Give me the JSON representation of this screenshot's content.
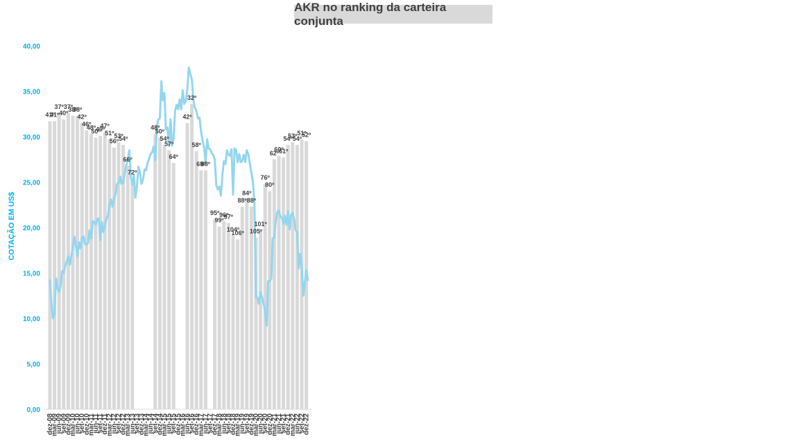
{
  "chart_data": {
    "type": "bar+line",
    "title": "AKR no ranking da carteira conjunta",
    "ylabel": "COTAÇÃO EM US$",
    "ylim": [
      0,
      40
    ],
    "yticks": [
      "0,00",
      "5,00",
      "10,00",
      "15,00",
      "20,00",
      "25,00",
      "30,00",
      "35,00",
      "40,00"
    ],
    "xticks": [
      "dez-08",
      "mar-09",
      "jun-09",
      "set-09",
      "dez-09",
      "mar-10",
      "jun-10",
      "set-10",
      "dez-10",
      "mar-11",
      "jun-11",
      "set-11",
      "dez-11",
      "mar-12",
      "jun-12",
      "set-12",
      "dez-12",
      "mar-13",
      "jun-13",
      "set-13",
      "dez-13",
      "mar-14",
      "jun-14",
      "set-14",
      "dez-14",
      "mar-15",
      "jun-15",
      "set-15",
      "dez-15",
      "mar-16",
      "jun-16",
      "set-16",
      "dez-16",
      "mar-17",
      "jun-17",
      "set-17",
      "dez-17",
      "mar-18",
      "jun-18",
      "set-18",
      "dez-18",
      "mar-19",
      "jun-19",
      "set-19",
      "dez-19",
      "mar-20",
      "jun-20",
      "set-20",
      "dez-20",
      "mar-21",
      "jun-21",
      "set-21",
      "dez-21",
      "mar-22",
      "jun-22",
      "set-22",
      "dez-22"
    ],
    "bars": [
      {
        "i": 0,
        "v": 31.7,
        "label": "41º"
      },
      {
        "i": 3,
        "v": 31.7,
        "label": "41º"
      },
      {
        "i": 6,
        "v": 32.6,
        "label": "37º"
      },
      {
        "i": 9,
        "v": 31.9,
        "label": "40º"
      },
      {
        "i": 12,
        "v": 32.6,
        "label": "37º"
      },
      {
        "i": 15,
        "v": 32.3,
        "label": "38º"
      },
      {
        "i": 18,
        "v": 32.3,
        "label": "38º"
      },
      {
        "i": 21,
        "v": 31.5,
        "label": "42º"
      },
      {
        "i": 24,
        "v": 30.7,
        "label": "46º"
      },
      {
        "i": 27,
        "v": 30.3,
        "label": "48º"
      },
      {
        "i": 30,
        "v": 29.9,
        "label": "50º"
      },
      {
        "i": 33,
        "v": 30.1,
        "label": "49º"
      },
      {
        "i": 36,
        "v": 30.5,
        "label": "47º"
      },
      {
        "i": 39,
        "v": 29.7,
        "label": "51º"
      },
      {
        "i": 42,
        "v": 28.8,
        "label": "56º"
      },
      {
        "i": 45,
        "v": 29.4,
        "label": "53º"
      },
      {
        "i": 48,
        "v": 29.1,
        "label": "54º"
      },
      {
        "i": 51,
        "v": 26.8,
        "label": "66º"
      },
      {
        "i": 54,
        "v": 25.4,
        "label": "72º"
      },
      {
        "i": 69,
        "v": 30.3,
        "label": "48º"
      },
      {
        "i": 72,
        "v": 29.9,
        "label": "50º"
      },
      {
        "i": 75,
        "v": 29.1,
        "label": "54º"
      },
      {
        "i": 78,
        "v": 28.5,
        "label": "57º"
      },
      {
        "i": 81,
        "v": 27.1,
        "label": "64º"
      },
      {
        "i": 90,
        "v": 31.5,
        "label": "42º"
      },
      {
        "i": 93,
        "v": 33.6,
        "label": "32º"
      },
      {
        "i": 96,
        "v": 28.4,
        "label": "58º"
      },
      {
        "i": 99,
        "v": 26.3,
        "label": "68º"
      },
      {
        "i": 102,
        "v": 26.3,
        "label": "68º"
      },
      {
        "i": 108,
        "v": 20.9,
        "label": "95º"
      },
      {
        "i": 111,
        "v": 20.1,
        "label": "99º"
      },
      {
        "i": 114,
        "v": 20.7,
        "label": "96º"
      },
      {
        "i": 117,
        "v": 20.5,
        "label": "97º"
      },
      {
        "i": 120,
        "v": 19.1,
        "label": "104º"
      },
      {
        "i": 123,
        "v": 18.7,
        "label": "106º"
      },
      {
        "i": 126,
        "v": 22.3,
        "label": "88º"
      },
      {
        "i": 129,
        "v": 23.1,
        "label": "84º"
      },
      {
        "i": 132,
        "v": 22.3,
        "label": "88º"
      },
      {
        "i": 135,
        "v": 18.9,
        "label": "105º"
      },
      {
        "i": 138,
        "v": 19.7,
        "label": "101º"
      },
      {
        "i": 141,
        "v": 24.8,
        "label": "76º"
      },
      {
        "i": 144,
        "v": 24.0,
        "label": "80º"
      },
      {
        "i": 147,
        "v": 27.5,
        "label": "62º"
      },
      {
        "i": 150,
        "v": 27.9,
        "label": "60º"
      },
      {
        "i": 153,
        "v": 27.7,
        "label": "61º"
      },
      {
        "i": 156,
        "v": 29.1,
        "label": "54º"
      },
      {
        "i": 159,
        "v": 29.4,
        "label": "53º"
      },
      {
        "i": 162,
        "v": 29.1,
        "label": "54º"
      },
      {
        "i": 165,
        "v": 29.7,
        "label": "51º"
      },
      {
        "i": 168,
        "v": 29.5,
        "label": "52º"
      }
    ],
    "line": [
      [
        0,
        14.2
      ],
      [
        1,
        11.5
      ],
      [
        2,
        10.0
      ],
      [
        3,
        10.5
      ],
      [
        4,
        14.4
      ],
      [
        5,
        13.3
      ],
      [
        6,
        12.9
      ],
      [
        7,
        13.6
      ],
      [
        8,
        15.2
      ],
      [
        9,
        15.0
      ],
      [
        10,
        15.8
      ],
      [
        11,
        16.2
      ],
      [
        12,
        16.8
      ],
      [
        13,
        15.9
      ],
      [
        14,
        16.8
      ],
      [
        15,
        17.9
      ],
      [
        16,
        19.0
      ],
      [
        17,
        18.0
      ],
      [
        18,
        16.8
      ],
      [
        19,
        18.4
      ],
      [
        20,
        17.7
      ],
      [
        21,
        18.9
      ],
      [
        22,
        19.0
      ],
      [
        23,
        18.2
      ],
      [
        24,
        18.1
      ],
      [
        25,
        18.3
      ],
      [
        26,
        19.7
      ],
      [
        27,
        18.8
      ],
      [
        28,
        20.7
      ],
      [
        29,
        20.6
      ],
      [
        30,
        20.3
      ],
      [
        31,
        20.9
      ],
      [
        32,
        21.0
      ],
      [
        33,
        18.6
      ],
      [
        34,
        20.6
      ],
      [
        35,
        19.5
      ],
      [
        36,
        20.1
      ],
      [
        37,
        21.0
      ],
      [
        38,
        21.3
      ],
      [
        39,
        22.6
      ],
      [
        40,
        23.1
      ],
      [
        41,
        22.3
      ],
      [
        42,
        23.2
      ],
      [
        43,
        23.7
      ],
      [
        44,
        24.8
      ],
      [
        45,
        24.9
      ],
      [
        46,
        25.6
      ],
      [
        47,
        24.8
      ],
      [
        48,
        25.0
      ],
      [
        49,
        26.0
      ],
      [
        50,
        26.8
      ],
      [
        51,
        27.5
      ],
      [
        52,
        28.5
      ],
      [
        53,
        25.6
      ],
      [
        54,
        24.7
      ],
      [
        55,
        25.8
      ],
      [
        56,
        23.3
      ],
      [
        57,
        24.5
      ],
      [
        58,
        26.7
      ],
      [
        59,
        26.0
      ],
      [
        60,
        24.8
      ],
      [
        61,
        25.3
      ],
      [
        62,
        26.4
      ],
      [
        63,
        26.3
      ],
      [
        64,
        27.1
      ],
      [
        65,
        27.6
      ],
      [
        66,
        28.1
      ],
      [
        67,
        28.3
      ],
      [
        68,
        28.9
      ],
      [
        69,
        27.4
      ],
      [
        70,
        31.0
      ],
      [
        71,
        31.9
      ],
      [
        72,
        32.0
      ],
      [
        73,
        36.1
      ],
      [
        74,
        34.0
      ],
      [
        75,
        34.8
      ],
      [
        76,
        30.8
      ],
      [
        77,
        31.0
      ],
      [
        78,
        29.0
      ],
      [
        79,
        31.9
      ],
      [
        80,
        29.0
      ],
      [
        81,
        29.8
      ],
      [
        82,
        32.8
      ],
      [
        83,
        33.5
      ],
      [
        84,
        33.0
      ],
      [
        85,
        34.1
      ],
      [
        86,
        33.0
      ],
      [
        87,
        35.1
      ],
      [
        88,
        33.6
      ],
      [
        89,
        33.9
      ],
      [
        90,
        35.2
      ],
      [
        91,
        37.6
      ],
      [
        92,
        36.9
      ],
      [
        93,
        36.3
      ],
      [
        94,
        34.0
      ],
      [
        95,
        33.2
      ],
      [
        96,
        32.8
      ],
      [
        97,
        32.0
      ],
      [
        98,
        32.1
      ],
      [
        99,
        30.6
      ],
      [
        100,
        29.6
      ],
      [
        101,
        28.8
      ],
      [
        102,
        27.2
      ],
      [
        103,
        29.7
      ],
      [
        104,
        28.7
      ],
      [
        105,
        28.6
      ],
      [
        106,
        28.2
      ],
      [
        107,
        28.0
      ],
      [
        108,
        27.5
      ],
      [
        109,
        24.6
      ],
      [
        110,
        24.2
      ],
      [
        111,
        24.5
      ],
      [
        112,
        23.5
      ],
      [
        113,
        25.8
      ],
      [
        114,
        27.3
      ],
      [
        115,
        27.0
      ],
      [
        116,
        28.5
      ],
      [
        117,
        28.0
      ],
      [
        118,
        27.9
      ],
      [
        119,
        28.6
      ],
      [
        120,
        23.6
      ],
      [
        121,
        28.7
      ],
      [
        122,
        28.5
      ],
      [
        123,
        27.2
      ],
      [
        124,
        28.1
      ],
      [
        125,
        27.2
      ],
      [
        126,
        27.3
      ],
      [
        127,
        28.0
      ],
      [
        128,
        27.2
      ],
      [
        129,
        28.5
      ],
      [
        130,
        28.1
      ],
      [
        131,
        27.0
      ],
      [
        132,
        26.0
      ],
      [
        133,
        25.0
      ],
      [
        134,
        22.6
      ],
      [
        135,
        12.3
      ],
      [
        136,
        12.3
      ],
      [
        137,
        11.6
      ],
      [
        138,
        12.9
      ],
      [
        139,
        12.3
      ],
      [
        140,
        11.6
      ],
      [
        141,
        10.8
      ],
      [
        142,
        9.2
      ],
      [
        143,
        14.1
      ],
      [
        144,
        14.1
      ],
      [
        145,
        14.4
      ],
      [
        146,
        18.8
      ],
      [
        147,
        18.9
      ],
      [
        148,
        20.8
      ],
      [
        149,
        21.7
      ],
      [
        150,
        21.9
      ],
      [
        151,
        21.2
      ],
      [
        152,
        21.1
      ],
      [
        153,
        20.4
      ],
      [
        154,
        21.3
      ],
      [
        155,
        20.3
      ],
      [
        156,
        21.8
      ],
      [
        157,
        19.8
      ],
      [
        158,
        21.4
      ],
      [
        159,
        21.6
      ],
      [
        160,
        20.9
      ],
      [
        161,
        19.7
      ],
      [
        162,
        19.5
      ],
      [
        163,
        15.5
      ],
      [
        164,
        17.1
      ],
      [
        165,
        15.7
      ],
      [
        166,
        12.5
      ],
      [
        167,
        13.9
      ],
      [
        168,
        15.3
      ],
      [
        169,
        14.2
      ]
    ],
    "colors": {
      "bar": "#d9d9d9",
      "line": "#94d6f0",
      "axis_text": "#00b0f0",
      "title_bg": "#d9d9d9"
    },
    "legend": "none",
    "grid": false
  }
}
